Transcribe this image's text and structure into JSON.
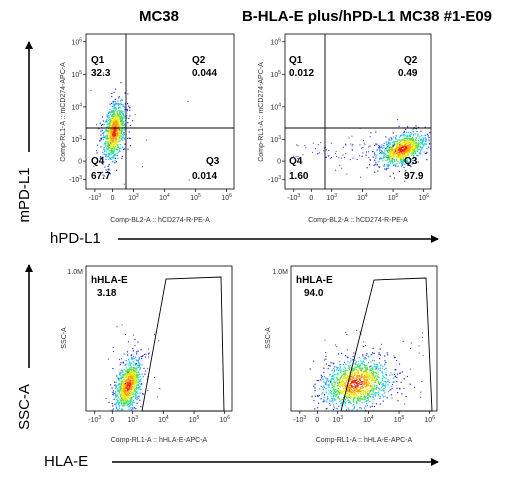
{
  "headers": {
    "left": "MC38",
    "right": "B-HLA-E plus/hPD-L1 MC38 #1-E09"
  },
  "side_labels": {
    "top_y": "mPD-L1",
    "top_x": "hPD-L1",
    "bottom_y": "SSC-A",
    "bottom_x": "HLA-E"
  },
  "colors": {
    "density_low": "#1d2bd6",
    "density_high": "#ff2200",
    "gate": "#000000"
  },
  "chart_data": [
    {
      "type": "scatter",
      "plot_kind": "flow-cytometry-quadrant",
      "panel": "MC38",
      "xlabel": "Comp-BL2-A :: hCD274-R-PE-A",
      "ylabel": "Comp-RL1-A :: mCD274-APC-A",
      "x_scale": "biexponential",
      "y_scale": "biexponential",
      "x_ticks": [
        "-10^3",
        "0",
        "10^3",
        "10^4",
        "10^5",
        "10^6"
      ],
      "y_ticks": [
        "-10^3",
        "0",
        "10^3",
        "10^4",
        "10^5",
        "10^6"
      ],
      "quadrants": [
        {
          "name": "Q1",
          "value": "32.3"
        },
        {
          "name": "Q2",
          "value": "0.044"
        },
        {
          "name": "Q3",
          "value": "0.014"
        },
        {
          "name": "Q4",
          "value": "67.7"
        }
      ]
    },
    {
      "type": "scatter",
      "plot_kind": "flow-cytometry-quadrant",
      "panel": "B-HLA-E plus/hPD-L1 MC38 #1-E09",
      "xlabel": "Comp-BL2-A :: hCD274-R-PE-A",
      "ylabel": "Comp-RL1-A :: mCD274-APC-A",
      "x_scale": "biexponential",
      "y_scale": "biexponential",
      "x_ticks": [
        "-10^3",
        "0",
        "10^3",
        "10^4",
        "10^5",
        "10^6"
      ],
      "y_ticks": [
        "-10^3",
        "0",
        "10^3",
        "10^4",
        "10^5",
        "10^6"
      ],
      "quadrants": [
        {
          "name": "Q1",
          "value": "0.012"
        },
        {
          "name": "Q2",
          "value": "0.49"
        },
        {
          "name": "Q3",
          "value": "97.9"
        },
        {
          "name": "Q4",
          "value": "1.60"
        }
      ]
    },
    {
      "type": "scatter",
      "plot_kind": "flow-cytometry-gate",
      "panel": "MC38",
      "xlabel": "Comp-RL1-A :: hHLA-E-APC-A",
      "ylabel": "SSC-A",
      "x_scale": "biexponential",
      "x_ticks": [
        "-10^3",
        "0",
        "10^3",
        "10^4",
        "10^5",
        "10^6"
      ],
      "y_ticks": [
        "1.0M"
      ],
      "gate": {
        "name": "hHLA-E",
        "value": "3.18"
      }
    },
    {
      "type": "scatter",
      "plot_kind": "flow-cytometry-gate",
      "panel": "B-HLA-E plus/hPD-L1 MC38 #1-E09",
      "xlabel": "Comp-RL1-A :: hHLA-E-APC-A",
      "ylabel": "SSC-A",
      "x_scale": "biexponential",
      "x_ticks": [
        "-10^3",
        "0",
        "10^3",
        "10^4",
        "10^5",
        "10^6"
      ],
      "y_ticks": [
        "1.0M"
      ],
      "gate": {
        "name": "hHLA-E",
        "value": "94.0"
      }
    }
  ]
}
